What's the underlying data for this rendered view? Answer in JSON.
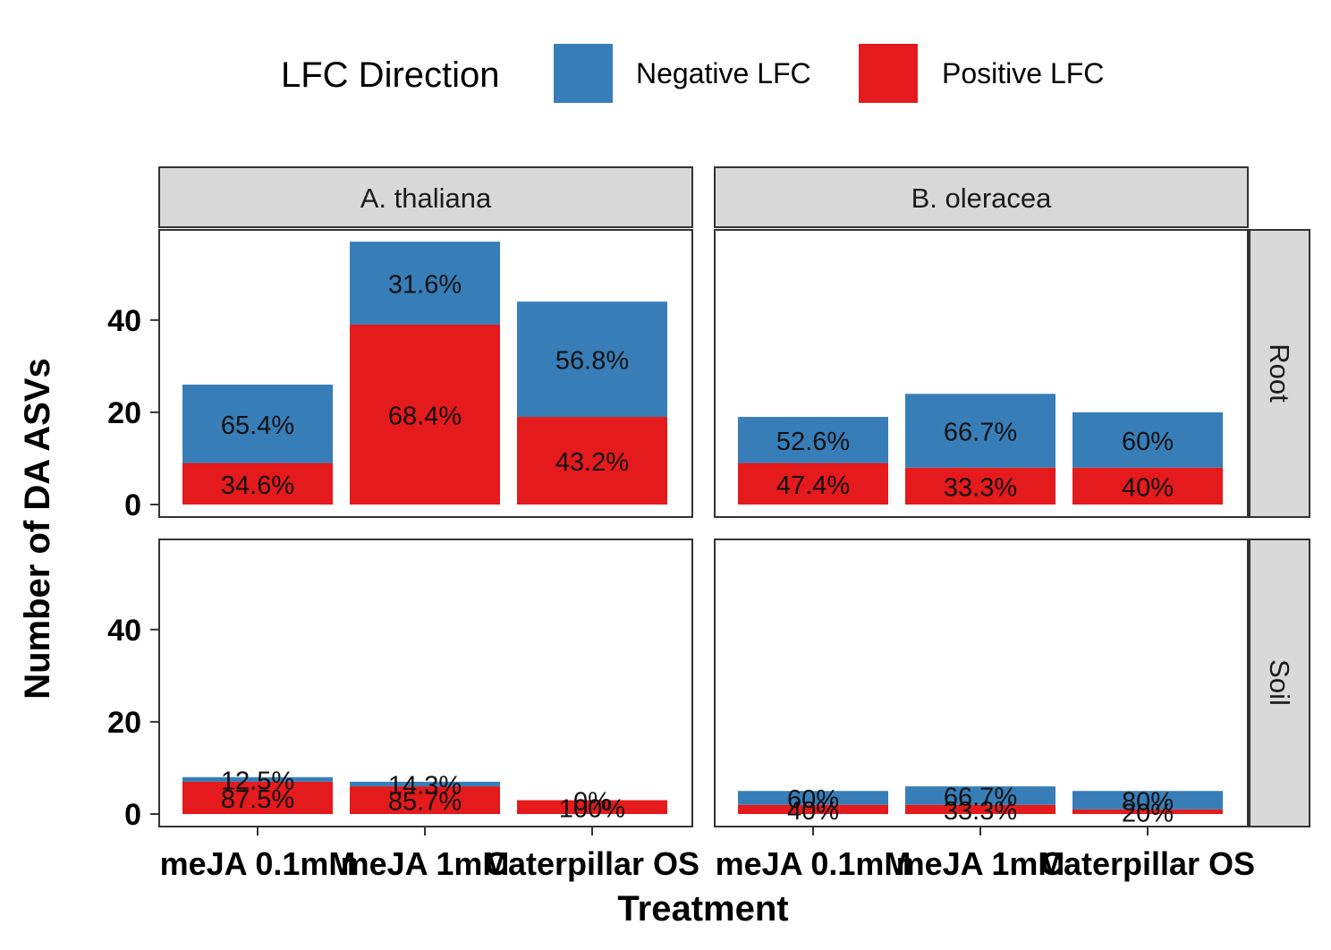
{
  "legend": {
    "title": "LFC Direction",
    "items": [
      {
        "label": "Negative LFC",
        "color": "#377EB8"
      },
      {
        "label": "Positive LFC",
        "color": "#E41A1C"
      }
    ]
  },
  "chart_data": {
    "type": "bar",
    "stacked": true,
    "xlabel": "Treatment",
    "ylabel": "Number of DA ASVs",
    "ylim": [
      0,
      57
    ],
    "yticks": [
      0,
      20,
      40
    ],
    "grid": false,
    "legend_position": "top",
    "categories": [
      "meJA 0.1mM",
      "meJA 1mM",
      "Caterpillar OS"
    ],
    "col_facets": [
      "A. thaliana",
      "B. oleracea"
    ],
    "row_facets": [
      "Root",
      "Soil"
    ],
    "panels": [
      {
        "col": "A. thaliana",
        "row": "Root",
        "negative": [
          17,
          18,
          25
        ],
        "positive": [
          9,
          39,
          19
        ],
        "neg_labels": [
          "65.4%",
          "31.6%",
          "56.8%"
        ],
        "pos_labels": [
          "34.6%",
          "68.4%",
          "43.2%"
        ]
      },
      {
        "col": "B. oleracea",
        "row": "Root",
        "negative": [
          10,
          16,
          12
        ],
        "positive": [
          9,
          8,
          8
        ],
        "neg_labels": [
          "52.6%",
          "66.7%",
          "60%"
        ],
        "pos_labels": [
          "47.4%",
          "33.3%",
          "40%"
        ]
      },
      {
        "col": "A. thaliana",
        "row": "Soil",
        "negative": [
          1,
          1,
          0
        ],
        "positive": [
          7,
          6,
          3
        ],
        "neg_labels": [
          "12.5%",
          "14.3%",
          "0%"
        ],
        "pos_labels": [
          "87.5%",
          "85.7%",
          "100%"
        ]
      },
      {
        "col": "B. oleracea",
        "row": "Soil",
        "negative": [
          3,
          4,
          4
        ],
        "positive": [
          2,
          2,
          1
        ],
        "neg_labels": [
          "60%",
          "66.7%",
          "80%"
        ],
        "pos_labels": [
          "40%",
          "33.3%",
          "20%"
        ]
      }
    ]
  }
}
